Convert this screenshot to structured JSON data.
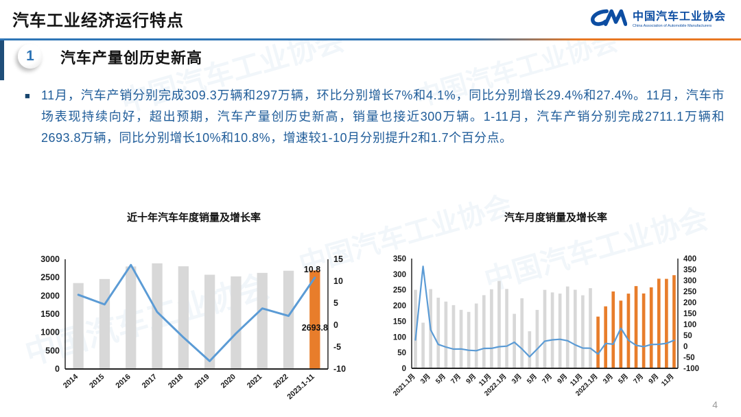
{
  "page": {
    "number": "4"
  },
  "header": {
    "title": "汽车工业经济运行特点",
    "logo": {
      "mark": "CM",
      "name_zh": "中国汽车工业协会",
      "name_en": "China Association of Automobile Manufacturers"
    },
    "divider_colors": {
      "left": "#2E75B6",
      "right": "#E87722"
    }
  },
  "section": {
    "badge": "1",
    "title": "汽车产量创历史新高"
  },
  "body": {
    "bullet": "■",
    "text": "11月，汽车产销分别完成309.3万辆和297万辆，环比分别增长7%和4.1%，同比分别增长29.4%和27.4%。11月，汽车市场表现持续向好，超出预期，汽车产量创历史新高，销量也接近300万辆。1-11月，汽车产销分别完成2711.1万辆和2693.8万辆，同比分别增长10%和10.8%，增速较1-10月分别提升2和1.7个百分点。"
  },
  "watermark": "中国汽车工业协会",
  "chart_data": [
    {
      "type": "bar",
      "subtype": "bar+line dual axis",
      "title": "近十年汽车年度销量及增长率",
      "categories": [
        "2014",
        "2015",
        "2016",
        "2017",
        "2018",
        "2019",
        "2020",
        "2021",
        "2022",
        "2023.1-11"
      ],
      "bar_values": [
        2349.2,
        2459.8,
        2802.8,
        2887.9,
        2808.1,
        2576.9,
        2531.1,
        2627.5,
        2686.4,
        2693.8
      ],
      "line_values": [
        6.9,
        4.7,
        13.7,
        3.0,
        -2.8,
        -8.2,
        -1.9,
        3.8,
        2.1,
        10.8
      ],
      "y1": {
        "min": 0,
        "max": 3000,
        "step": 500
      },
      "y2": {
        "min": -10,
        "max": 15,
        "step": 5
      },
      "colors": {
        "bar": "#D8D8D8",
        "highlight": "#E87D2B",
        "line": "#5B9BD5"
      },
      "highlight_start": 9,
      "grid": false,
      "legend": "none",
      "annotations": [
        {
          "text": "10.8",
          "fx": 0.94,
          "fy": 0.12,
          "anchor": "middle"
        },
        {
          "text": "2693.8",
          "fx": 0.95,
          "fy": 0.65,
          "anchor": "middle"
        }
      ]
    },
    {
      "type": "bar",
      "subtype": "bar+line dual axis",
      "title": "汽车月度销量及增长率",
      "categories": [
        "2021.1月",
        "2月",
        "3月",
        "4月",
        "5月",
        "6月",
        "7月",
        "8月",
        "9月",
        "10月",
        "11月",
        "12月",
        "2022.1月",
        "2月",
        "3月",
        "4月",
        "5月",
        "6月",
        "7月",
        "8月",
        "9月",
        "10月",
        "11月",
        "12月",
        "2023.1月",
        "2月",
        "3月",
        "4月",
        "5月",
        "6月",
        "7月",
        "8月",
        "9月",
        "10月",
        "11月"
      ],
      "bar_values": [
        250.3,
        145.5,
        252.6,
        225.2,
        212.8,
        201.5,
        186.4,
        179.9,
        206.7,
        233.3,
        252.2,
        278.6,
        253.1,
        173.7,
        223.4,
        118.1,
        186.2,
        250.2,
        242.0,
        238.3,
        261.0,
        250.5,
        232.8,
        255.6,
        164.9,
        197.6,
        245.1,
        215.9,
        238.2,
        262.2,
        238.7,
        258.2,
        285.8,
        285.3,
        297.0
      ],
      "line_values": [
        29.5,
        364.8,
        74.9,
        8.6,
        -3.1,
        -12.4,
        -11.9,
        -17.8,
        -19.6,
        -9.4,
        -9.1,
        -1.6,
        0.9,
        18.7,
        -11.7,
        -47.6,
        -12.6,
        23.8,
        29.7,
        32.1,
        25.7,
        6.9,
        -7.9,
        -8.4,
        -35.0,
        13.5,
        9.7,
        82.7,
        27.9,
        4.8,
        -1.4,
        8.4,
        9.5,
        13.8,
        27.4
      ],
      "y1": {
        "min": 0,
        "max": 350,
        "step": 50
      },
      "y2": {
        "min": -100,
        "max": 400,
        "step": 50
      },
      "colors": {
        "bar": "#D8D8D8",
        "highlight": "#E87D2B",
        "line": "#5B9BD5"
      },
      "highlight_start": 24,
      "grid": false,
      "legend": "none",
      "annotations": []
    }
  ]
}
